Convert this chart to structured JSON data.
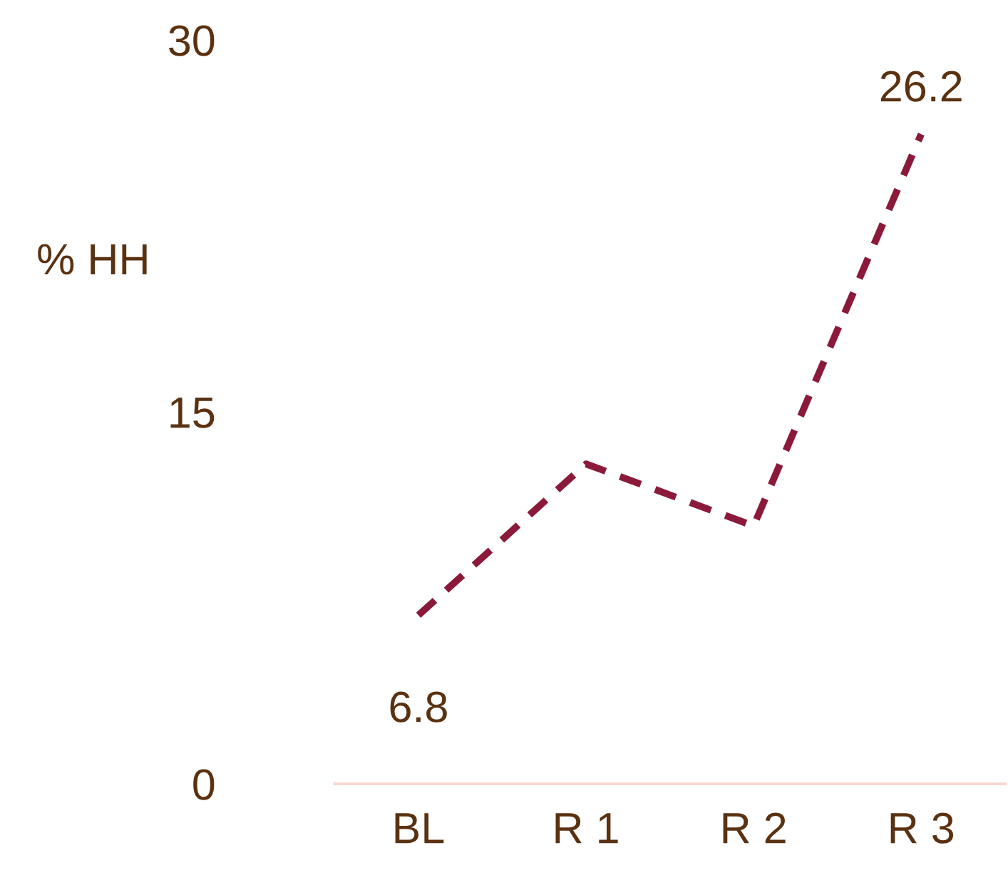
{
  "chart_data": {
    "type": "line",
    "ylabel": "% HH",
    "categories": [
      "BL",
      "R 1",
      "R 2",
      "R 3"
    ],
    "series": [
      {
        "color": "#8b1a3a",
        "values": [
          6.8,
          12.9,
          10.4,
          26.2
        ],
        "value_labels": [
          "6.8",
          null,
          null,
          "26.2"
        ],
        "line_style": "dashed",
        "marker": "none"
      }
    ],
    "ylim": [
      0,
      30
    ],
    "yticks": [
      0,
      15,
      30
    ],
    "grid": false
  }
}
